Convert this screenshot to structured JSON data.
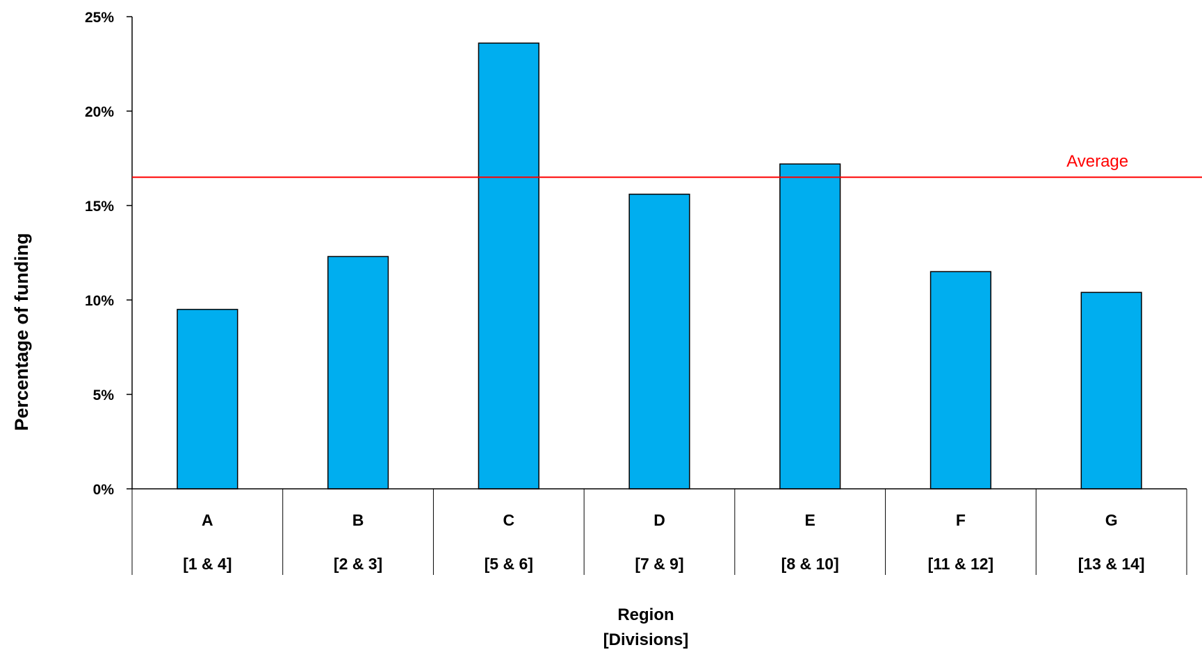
{
  "chart_data": {
    "type": "bar",
    "categories": [
      "A",
      "B",
      "C",
      "D",
      "E",
      "F",
      "G"
    ],
    "subcategories": [
      "[1 & 4]",
      "[2 & 3]",
      "[5 & 6]",
      "[7 & 9]",
      "[8 & 10]",
      "[11 & 12]",
      "[13 & 14]"
    ],
    "values": [
      9.5,
      12.3,
      23.6,
      15.6,
      17.2,
      11.5,
      10.4
    ],
    "y_ticks": [
      "0%",
      "5%",
      "10%",
      "15%",
      "20%",
      "25%"
    ],
    "ylim": [
      0,
      25
    ],
    "average": 16.5,
    "average_label": "Average",
    "ylabel": "Percentage of funding",
    "xlabel_line1": "Region",
    "xlabel_line2": "[Divisions]",
    "grid": false,
    "bar_color": "#00AEEF",
    "average_color": "#FF0000"
  }
}
